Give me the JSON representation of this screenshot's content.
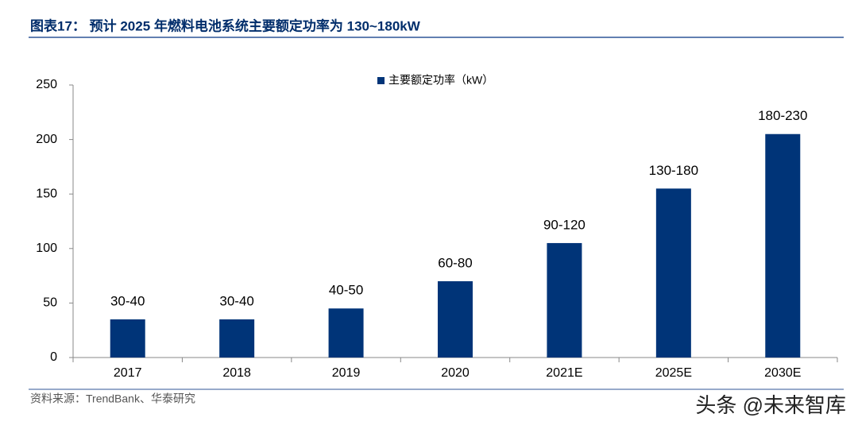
{
  "chart_data": {
    "type": "bar",
    "title": "图表17：  预计 2025 年燃料电池系统主要额定功率为 130~180kW",
    "categories": [
      "2017",
      "2018",
      "2019",
      "2020",
      "2021E",
      "2025E",
      "2030E"
    ],
    "series": [
      {
        "name": "主要额定功率（kW）",
        "color": "#003478",
        "values": [
          35,
          35,
          45,
          70,
          105,
          155,
          205
        ],
        "value_labels": [
          "30-40",
          "30-40",
          "40-50",
          "60-80",
          "90-120",
          "130-180",
          "180-230"
        ]
      }
    ],
    "ylim": [
      0,
      250
    ],
    "yticks": [
      0,
      50,
      100,
      150,
      200,
      250
    ],
    "grid": false,
    "legend": "top",
    "source": "资料来源：TrendBank、华泰研究",
    "watermark": "头条 @未来智库"
  }
}
